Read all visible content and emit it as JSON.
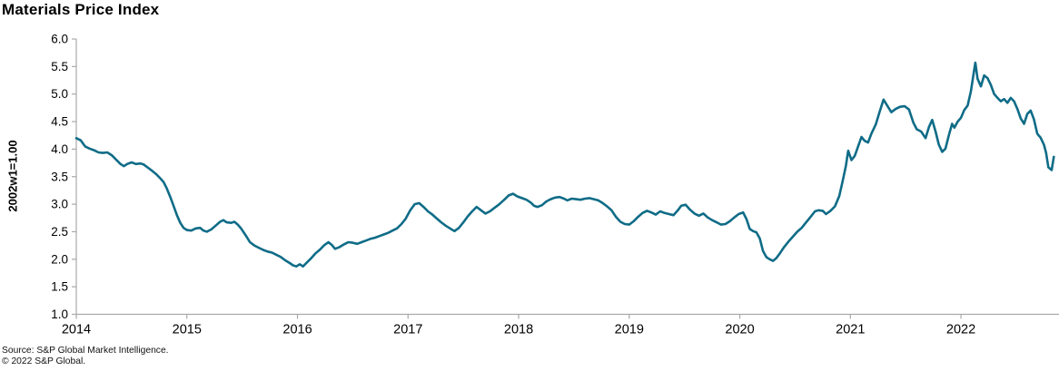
{
  "title": "Materials Price Index",
  "source_line1": "Source: S&P Global Market Intelligence.",
  "source_line2": "© 2022 S&P Global.",
  "colors": {
    "line": "#0f6c87",
    "axis": "#a9a9a9",
    "text": "#000000"
  },
  "chart_data": {
    "type": "line",
    "title": "Materials Price Index",
    "xlabel": "",
    "ylabel": "2002w1=1.00",
    "x_ticks": [
      2014,
      2015,
      2016,
      2017,
      2018,
      2019,
      2020,
      2021,
      2022
    ],
    "y_ticks": [
      1.0,
      1.5,
      2.0,
      2.5,
      3.0,
      3.5,
      4.0,
      4.5,
      5.0,
      5.5,
      6.0
    ],
    "xlim": [
      2014,
      2022.87
    ],
    "ylim": [
      1.0,
      6.0
    ],
    "grid": false,
    "legend_position": "none",
    "series": [
      {
        "name": "Materials Price Index (2002w1=1.00)",
        "points": [
          [
            2014.0,
            4.2
          ],
          [
            2014.04,
            4.16
          ],
          [
            2014.08,
            4.05
          ],
          [
            2014.12,
            4.01
          ],
          [
            2014.16,
            3.98
          ],
          [
            2014.2,
            3.94
          ],
          [
            2014.24,
            3.93
          ],
          [
            2014.28,
            3.94
          ],
          [
            2014.32,
            3.89
          ],
          [
            2014.36,
            3.81
          ],
          [
            2014.4,
            3.73
          ],
          [
            2014.43,
            3.69
          ],
          [
            2014.46,
            3.73
          ],
          [
            2014.5,
            3.76
          ],
          [
            2014.54,
            3.73
          ],
          [
            2014.58,
            3.74
          ],
          [
            2014.61,
            3.72
          ],
          [
            2014.65,
            3.66
          ],
          [
            2014.69,
            3.6
          ],
          [
            2014.72,
            3.55
          ],
          [
            2014.76,
            3.47
          ],
          [
            2014.79,
            3.4
          ],
          [
            2014.82,
            3.28
          ],
          [
            2014.85,
            3.13
          ],
          [
            2014.88,
            2.97
          ],
          [
            2014.91,
            2.8
          ],
          [
            2014.94,
            2.66
          ],
          [
            2014.97,
            2.57
          ],
          [
            2015.0,
            2.53
          ],
          [
            2015.04,
            2.52
          ],
          [
            2015.08,
            2.56
          ],
          [
            2015.12,
            2.57
          ],
          [
            2015.15,
            2.52
          ],
          [
            2015.18,
            2.5
          ],
          [
            2015.22,
            2.54
          ],
          [
            2015.26,
            2.61
          ],
          [
            2015.3,
            2.68
          ],
          [
            2015.33,
            2.71
          ],
          [
            2015.36,
            2.67
          ],
          [
            2015.4,
            2.66
          ],
          [
            2015.43,
            2.68
          ],
          [
            2015.46,
            2.63
          ],
          [
            2015.49,
            2.56
          ],
          [
            2015.53,
            2.44
          ],
          [
            2015.57,
            2.31
          ],
          [
            2015.61,
            2.25
          ],
          [
            2015.65,
            2.21
          ],
          [
            2015.69,
            2.17
          ],
          [
            2015.73,
            2.14
          ],
          [
            2015.77,
            2.12
          ],
          [
            2015.81,
            2.08
          ],
          [
            2015.85,
            2.04
          ],
          [
            2015.89,
            1.98
          ],
          [
            2015.93,
            1.93
          ],
          [
            2015.96,
            1.89
          ],
          [
            2015.99,
            1.87
          ],
          [
            2016.02,
            1.91
          ],
          [
            2016.05,
            1.87
          ],
          [
            2016.08,
            1.93
          ],
          [
            2016.12,
            2.01
          ],
          [
            2016.16,
            2.1
          ],
          [
            2016.2,
            2.17
          ],
          [
            2016.24,
            2.25
          ],
          [
            2016.28,
            2.31
          ],
          [
            2016.31,
            2.26
          ],
          [
            2016.34,
            2.19
          ],
          [
            2016.38,
            2.22
          ],
          [
            2016.42,
            2.27
          ],
          [
            2016.46,
            2.31
          ],
          [
            2016.5,
            2.3
          ],
          [
            2016.54,
            2.28
          ],
          [
            2016.58,
            2.31
          ],
          [
            2016.62,
            2.34
          ],
          [
            2016.66,
            2.37
          ],
          [
            2016.7,
            2.39
          ],
          [
            2016.74,
            2.42
          ],
          [
            2016.78,
            2.45
          ],
          [
            2016.82,
            2.48
          ],
          [
            2016.86,
            2.52
          ],
          [
            2016.9,
            2.56
          ],
          [
            2016.94,
            2.64
          ],
          [
            2016.98,
            2.74
          ],
          [
            2017.02,
            2.89
          ],
          [
            2017.06,
            3.0
          ],
          [
            2017.1,
            3.02
          ],
          [
            2017.14,
            2.95
          ],
          [
            2017.18,
            2.87
          ],
          [
            2017.22,
            2.81
          ],
          [
            2017.26,
            2.74
          ],
          [
            2017.3,
            2.67
          ],
          [
            2017.34,
            2.61
          ],
          [
            2017.38,
            2.56
          ],
          [
            2017.42,
            2.51
          ],
          [
            2017.46,
            2.57
          ],
          [
            2017.5,
            2.67
          ],
          [
            2017.54,
            2.78
          ],
          [
            2017.58,
            2.87
          ],
          [
            2017.62,
            2.95
          ],
          [
            2017.66,
            2.89
          ],
          [
            2017.7,
            2.83
          ],
          [
            2017.74,
            2.87
          ],
          [
            2017.78,
            2.93
          ],
          [
            2017.82,
            2.99
          ],
          [
            2017.87,
            3.08
          ],
          [
            2017.91,
            3.16
          ],
          [
            2017.95,
            3.19
          ],
          [
            2017.99,
            3.14
          ],
          [
            2018.03,
            3.11
          ],
          [
            2018.07,
            3.08
          ],
          [
            2018.11,
            3.03
          ],
          [
            2018.14,
            2.97
          ],
          [
            2018.17,
            2.95
          ],
          [
            2018.21,
            2.98
          ],
          [
            2018.25,
            3.05
          ],
          [
            2018.29,
            3.09
          ],
          [
            2018.33,
            3.12
          ],
          [
            2018.37,
            3.13
          ],
          [
            2018.41,
            3.1
          ],
          [
            2018.44,
            3.07
          ],
          [
            2018.48,
            3.1
          ],
          [
            2018.52,
            3.09
          ],
          [
            2018.56,
            3.08
          ],
          [
            2018.6,
            3.1
          ],
          [
            2018.64,
            3.11
          ],
          [
            2018.68,
            3.09
          ],
          [
            2018.72,
            3.07
          ],
          [
            2018.76,
            3.02
          ],
          [
            2018.8,
            2.96
          ],
          [
            2018.84,
            2.89
          ],
          [
            2018.88,
            2.77
          ],
          [
            2018.92,
            2.68
          ],
          [
            2018.96,
            2.64
          ],
          [
            2019.0,
            2.63
          ],
          [
            2019.04,
            2.69
          ],
          [
            2019.08,
            2.77
          ],
          [
            2019.12,
            2.84
          ],
          [
            2019.16,
            2.88
          ],
          [
            2019.2,
            2.85
          ],
          [
            2019.24,
            2.81
          ],
          [
            2019.28,
            2.87
          ],
          [
            2019.32,
            2.84
          ],
          [
            2019.36,
            2.82
          ],
          [
            2019.4,
            2.8
          ],
          [
            2019.44,
            2.89
          ],
          [
            2019.47,
            2.97
          ],
          [
            2019.51,
            2.99
          ],
          [
            2019.55,
            2.9
          ],
          [
            2019.59,
            2.83
          ],
          [
            2019.63,
            2.79
          ],
          [
            2019.67,
            2.83
          ],
          [
            2019.71,
            2.76
          ],
          [
            2019.75,
            2.71
          ],
          [
            2019.79,
            2.67
          ],
          [
            2019.83,
            2.63
          ],
          [
            2019.87,
            2.64
          ],
          [
            2019.91,
            2.69
          ],
          [
            2019.95,
            2.76
          ],
          [
            2019.99,
            2.82
          ],
          [
            2020.03,
            2.85
          ],
          [
            2020.06,
            2.73
          ],
          [
            2020.09,
            2.55
          ],
          [
            2020.12,
            2.51
          ],
          [
            2020.15,
            2.49
          ],
          [
            2020.18,
            2.38
          ],
          [
            2020.21,
            2.15
          ],
          [
            2020.24,
            2.04
          ],
          [
            2020.27,
            2.0
          ],
          [
            2020.3,
            1.97
          ],
          [
            2020.33,
            2.02
          ],
          [
            2020.36,
            2.1
          ],
          [
            2020.4,
            2.22
          ],
          [
            2020.44,
            2.32
          ],
          [
            2020.48,
            2.41
          ],
          [
            2020.52,
            2.5
          ],
          [
            2020.56,
            2.57
          ],
          [
            2020.6,
            2.67
          ],
          [
            2020.64,
            2.77
          ],
          [
            2020.68,
            2.87
          ],
          [
            2020.71,
            2.89
          ],
          [
            2020.75,
            2.88
          ],
          [
            2020.78,
            2.82
          ],
          [
            2020.82,
            2.88
          ],
          [
            2020.86,
            2.96
          ],
          [
            2020.9,
            3.15
          ],
          [
            2020.93,
            3.42
          ],
          [
            2020.96,
            3.7
          ],
          [
            2020.98,
            3.97
          ],
          [
            2021.01,
            3.8
          ],
          [
            2021.04,
            3.88
          ],
          [
            2021.07,
            4.05
          ],
          [
            2021.1,
            4.22
          ],
          [
            2021.13,
            4.15
          ],
          [
            2021.16,
            4.12
          ],
          [
            2021.19,
            4.28
          ],
          [
            2021.23,
            4.45
          ],
          [
            2021.26,
            4.65
          ],
          [
            2021.3,
            4.9
          ],
          [
            2021.33,
            4.8
          ],
          [
            2021.37,
            4.67
          ],
          [
            2021.41,
            4.73
          ],
          [
            2021.45,
            4.77
          ],
          [
            2021.49,
            4.78
          ],
          [
            2021.53,
            4.72
          ],
          [
            2021.57,
            4.48
          ],
          [
            2021.6,
            4.36
          ],
          [
            2021.64,
            4.32
          ],
          [
            2021.68,
            4.2
          ],
          [
            2021.71,
            4.4
          ],
          [
            2021.74,
            4.53
          ],
          [
            2021.77,
            4.32
          ],
          [
            2021.8,
            4.08
          ],
          [
            2021.83,
            3.95
          ],
          [
            2021.86,
            4.01
          ],
          [
            2021.89,
            4.25
          ],
          [
            2021.92,
            4.46
          ],
          [
            2021.94,
            4.39
          ],
          [
            2021.97,
            4.5
          ],
          [
            2022.0,
            4.57
          ],
          [
            2022.03,
            4.71
          ],
          [
            2022.06,
            4.79
          ],
          [
            2022.09,
            5.05
          ],
          [
            2022.12,
            5.45
          ],
          [
            2022.13,
            5.57
          ],
          [
            2022.15,
            5.28
          ],
          [
            2022.18,
            5.14
          ],
          [
            2022.21,
            5.34
          ],
          [
            2022.24,
            5.29
          ],
          [
            2022.27,
            5.17
          ],
          [
            2022.3,
            5.0
          ],
          [
            2022.33,
            4.93
          ],
          [
            2022.36,
            4.87
          ],
          [
            2022.39,
            4.91
          ],
          [
            2022.42,
            4.84
          ],
          [
            2022.45,
            4.93
          ],
          [
            2022.48,
            4.87
          ],
          [
            2022.51,
            4.73
          ],
          [
            2022.54,
            4.56
          ],
          [
            2022.57,
            4.46
          ],
          [
            2022.6,
            4.64
          ],
          [
            2022.63,
            4.7
          ],
          [
            2022.66,
            4.54
          ],
          [
            2022.69,
            4.28
          ],
          [
            2022.72,
            4.21
          ],
          [
            2022.75,
            4.08
          ],
          [
            2022.77,
            3.93
          ],
          [
            2022.79,
            3.67
          ],
          [
            2022.82,
            3.62
          ],
          [
            2022.84,
            3.86
          ]
        ]
      }
    ]
  }
}
